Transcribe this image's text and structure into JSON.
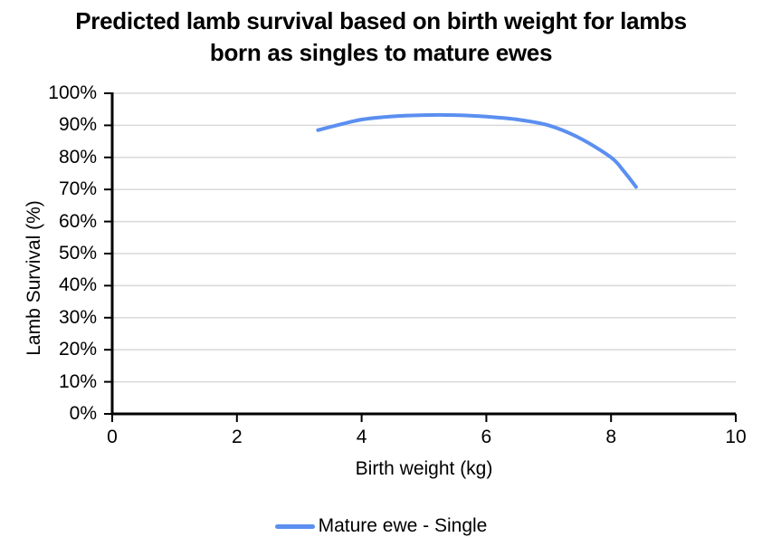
{
  "chart": {
    "title_lines": [
      "Predicted lamb survival based on birth weight for lambs",
      "born as singles to mature ewes"
    ],
    "y_axis": {
      "title": "Lamb Survival (%)",
      "tick_labels": [
        "0%",
        "10%",
        "20%",
        "30%",
        "40%",
        "50%",
        "60%",
        "70%",
        "80%",
        "90%",
        "100%"
      ]
    },
    "x_axis": {
      "title": "Birth weight (kg)",
      "tick_labels": [
        "0",
        "2",
        "4",
        "6",
        "8",
        "10"
      ]
    },
    "legend": [
      {
        "label": "Mature ewe - Single",
        "color": "#5B8FF0"
      }
    ]
  },
  "chart_data": {
    "type": "line",
    "title": "Predicted lamb survival based on birth weight for lambs born as singles to mature ewes",
    "xlabel": "Birth weight (kg)",
    "ylabel": "Lamb Survival (%)",
    "xlim": [
      0,
      10
    ],
    "ylim": [
      0,
      100
    ],
    "x_ticks": [
      0,
      2,
      4,
      6,
      8,
      10
    ],
    "y_ticks": [
      0,
      10,
      20,
      30,
      40,
      50,
      60,
      70,
      80,
      90,
      100
    ],
    "grid": "horizontal",
    "legend_position": "bottom",
    "series": [
      {
        "name": "Mature ewe - Single",
        "color": "#5B8FF0",
        "x": [
          3.3,
          3.6,
          4.0,
          4.5,
          5.0,
          5.5,
          6.0,
          6.5,
          7.0,
          7.5,
          8.0,
          8.2,
          8.4
        ],
        "y": [
          88.5,
          90.0,
          91.8,
          92.8,
          93.2,
          93.2,
          92.7,
          91.8,
          90.0,
          86.0,
          80.0,
          75.8,
          70.8
        ]
      }
    ],
    "colors": {
      "gridline": "#D9D9D9",
      "axis": "#000000",
      "text": "#000000"
    }
  }
}
